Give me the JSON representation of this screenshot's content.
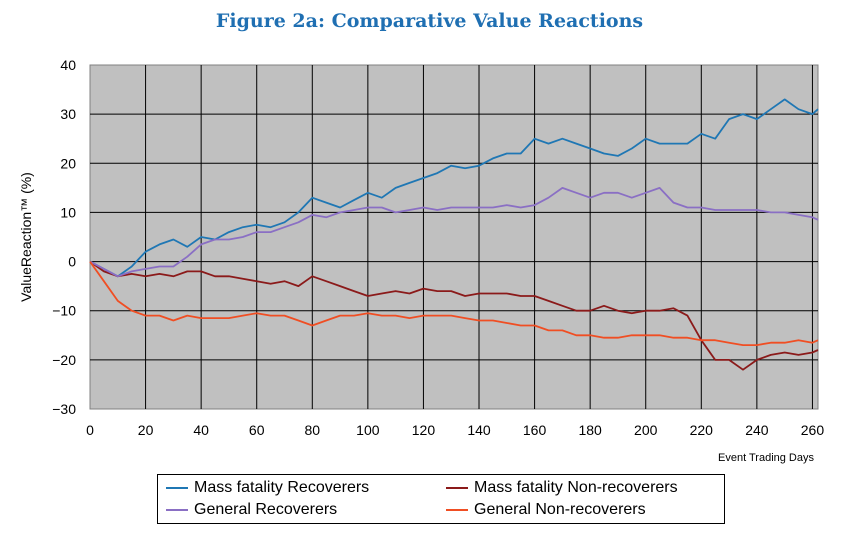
{
  "chart_data": {
    "type": "line",
    "title": "Figure 2a: Comparative Value Reactions",
    "ylabel": "ValueReaction™ (%)",
    "xlabel": "Event Trading Days",
    "xlim": [
      0,
      262
    ],
    "ylim": [
      -30,
      40
    ],
    "x_ticks": [
      "0",
      "20",
      "40",
      "60",
      "80",
      "100",
      "120",
      "140",
      "160",
      "180",
      "200",
      "220",
      "240",
      "260"
    ],
    "y_ticks": [
      "40",
      "30",
      "20",
      "10",
      "0",
      "−10",
      "−20",
      "−30"
    ],
    "grid": true,
    "legend_position": "bottom",
    "series": [
      {
        "name": "Mass fatality Recoverers",
        "color": "#1f77b4",
        "x": [
          0,
          5,
          10,
          15,
          20,
          25,
          30,
          35,
          40,
          45,
          50,
          55,
          60,
          65,
          70,
          75,
          80,
          85,
          90,
          95,
          100,
          105,
          110,
          115,
          120,
          125,
          130,
          135,
          140,
          145,
          150,
          155,
          160,
          165,
          170,
          175,
          180,
          185,
          190,
          195,
          200,
          205,
          210,
          215,
          220,
          225,
          230,
          235,
          240,
          245,
          250,
          255,
          260,
          262
        ],
        "values": [
          0,
          -1.5,
          -3,
          -1,
          2,
          3.5,
          4.5,
          3,
          5,
          4.5,
          6,
          7,
          7.5,
          7,
          8,
          10,
          13,
          12,
          11,
          12.5,
          14,
          13,
          15,
          16,
          17,
          18,
          19.5,
          19,
          19.5,
          21,
          22,
          22,
          25,
          24,
          25,
          24,
          23,
          22,
          21.5,
          23,
          25,
          24,
          24,
          24,
          26,
          25,
          29,
          30,
          29,
          31,
          33,
          31,
          30,
          31
        ]
      },
      {
        "name": "Mass fatality Non-recoverers",
        "color": "#8b1a1a",
        "x": [
          0,
          5,
          10,
          15,
          20,
          25,
          30,
          35,
          40,
          45,
          50,
          55,
          60,
          65,
          70,
          75,
          80,
          85,
          90,
          95,
          100,
          105,
          110,
          115,
          120,
          125,
          130,
          135,
          140,
          145,
          150,
          155,
          160,
          165,
          170,
          175,
          180,
          185,
          190,
          195,
          200,
          205,
          210,
          215,
          220,
          225,
          230,
          235,
          240,
          245,
          250,
          255,
          260,
          262
        ],
        "values": [
          0,
          -2,
          -3,
          -2.5,
          -3,
          -2.5,
          -3,
          -2,
          -2,
          -3,
          -3,
          -3.5,
          -4,
          -4.5,
          -4,
          -5,
          -3,
          -4,
          -5,
          -6,
          -7,
          -6.5,
          -6,
          -6.5,
          -5.5,
          -6,
          -6,
          -7,
          -6.5,
          -6.5,
          -6.5,
          -7,
          -7,
          -8,
          -9,
          -10,
          -10,
          -9,
          -10,
          -10.5,
          -10,
          -10,
          -9.5,
          -11,
          -16,
          -20,
          -20,
          -22,
          -20,
          -19,
          -18.5,
          -19,
          -18.5,
          -18
        ]
      },
      {
        "name": "General Recoverers",
        "color": "#8a6fc4",
        "x": [
          0,
          5,
          10,
          15,
          20,
          25,
          30,
          35,
          40,
          45,
          50,
          55,
          60,
          65,
          70,
          75,
          80,
          85,
          90,
          95,
          100,
          105,
          110,
          115,
          120,
          125,
          130,
          135,
          140,
          145,
          150,
          155,
          160,
          165,
          170,
          175,
          180,
          185,
          190,
          195,
          200,
          205,
          210,
          215,
          220,
          225,
          230,
          235,
          240,
          245,
          250,
          255,
          260,
          262
        ],
        "values": [
          0,
          -1.5,
          -3,
          -2,
          -1.5,
          -1,
          -1,
          1,
          3.5,
          4.5,
          4.5,
          5,
          6,
          6,
          7,
          8,
          9.5,
          9,
          10,
          10.5,
          11,
          11,
          10,
          10.5,
          11,
          10.5,
          11,
          11,
          11,
          11,
          11.5,
          11,
          11.5,
          13,
          15,
          14,
          13,
          14,
          14,
          13,
          14,
          15,
          12,
          11,
          11,
          10.5,
          10.5,
          10.5,
          10.5,
          10,
          10,
          9.5,
          9,
          8.5
        ]
      },
      {
        "name": "General Non-recoverers",
        "color": "#f04e23",
        "x": [
          0,
          5,
          10,
          15,
          20,
          25,
          30,
          35,
          40,
          45,
          50,
          55,
          60,
          65,
          70,
          75,
          80,
          85,
          90,
          95,
          100,
          105,
          110,
          115,
          120,
          125,
          130,
          135,
          140,
          145,
          150,
          155,
          160,
          165,
          170,
          175,
          180,
          185,
          190,
          195,
          200,
          205,
          210,
          215,
          220,
          225,
          230,
          235,
          240,
          245,
          250,
          255,
          260,
          262
        ],
        "values": [
          0,
          -4,
          -8,
          -10,
          -11,
          -11,
          -12,
          -11,
          -11.5,
          -11.5,
          -11.5,
          -11,
          -10.5,
          -11,
          -11,
          -12,
          -13,
          -12,
          -11,
          -11,
          -10.5,
          -11,
          -11,
          -11.5,
          -11,
          -11,
          -11,
          -11.5,
          -12,
          -12,
          -12.5,
          -13,
          -13,
          -14,
          -14,
          -15,
          -15,
          -15.5,
          -15.5,
          -15,
          -15,
          -15,
          -15.5,
          -15.5,
          -16,
          -16,
          -16.5,
          -17,
          -17,
          -16.5,
          -16.5,
          -16,
          -16.5,
          -16
        ]
      }
    ]
  }
}
